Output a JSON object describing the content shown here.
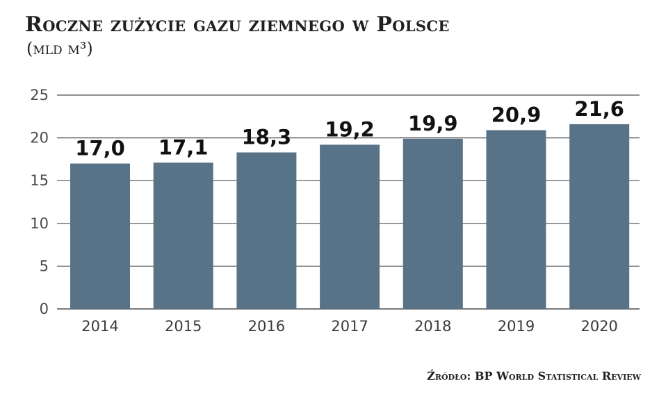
{
  "header": {
    "title": "Roczne zużycie gazu ziemnego w Polsce",
    "subtitle": "(mld m³)"
  },
  "footer": {
    "source": "Źródło: BP World Statistical Review"
  },
  "colors": {
    "bar": "#587387",
    "grid": "#4d4d4d",
    "text": "#231f20"
  },
  "chart_data": {
    "type": "bar",
    "title": "Roczne zużycie gazu ziemnego w Polsce",
    "subtitle": "(mld m³)",
    "xlabel": "",
    "ylabel": "",
    "categories": [
      "2014",
      "2015",
      "2016",
      "2017",
      "2018",
      "2019",
      "2020"
    ],
    "values": [
      17.0,
      17.1,
      18.3,
      19.2,
      19.9,
      20.9,
      21.6
    ],
    "value_labels": [
      "17,0",
      "17,1",
      "18,3",
      "19,2",
      "19,9",
      "20,9",
      "21,6"
    ],
    "ylim": [
      0,
      25
    ],
    "yticks": [
      "0",
      "5",
      "10",
      "15",
      "20",
      "25"
    ],
    "ytick_values": [
      0,
      5,
      10,
      15,
      20,
      25
    ],
    "grid": true,
    "legend": "none"
  }
}
